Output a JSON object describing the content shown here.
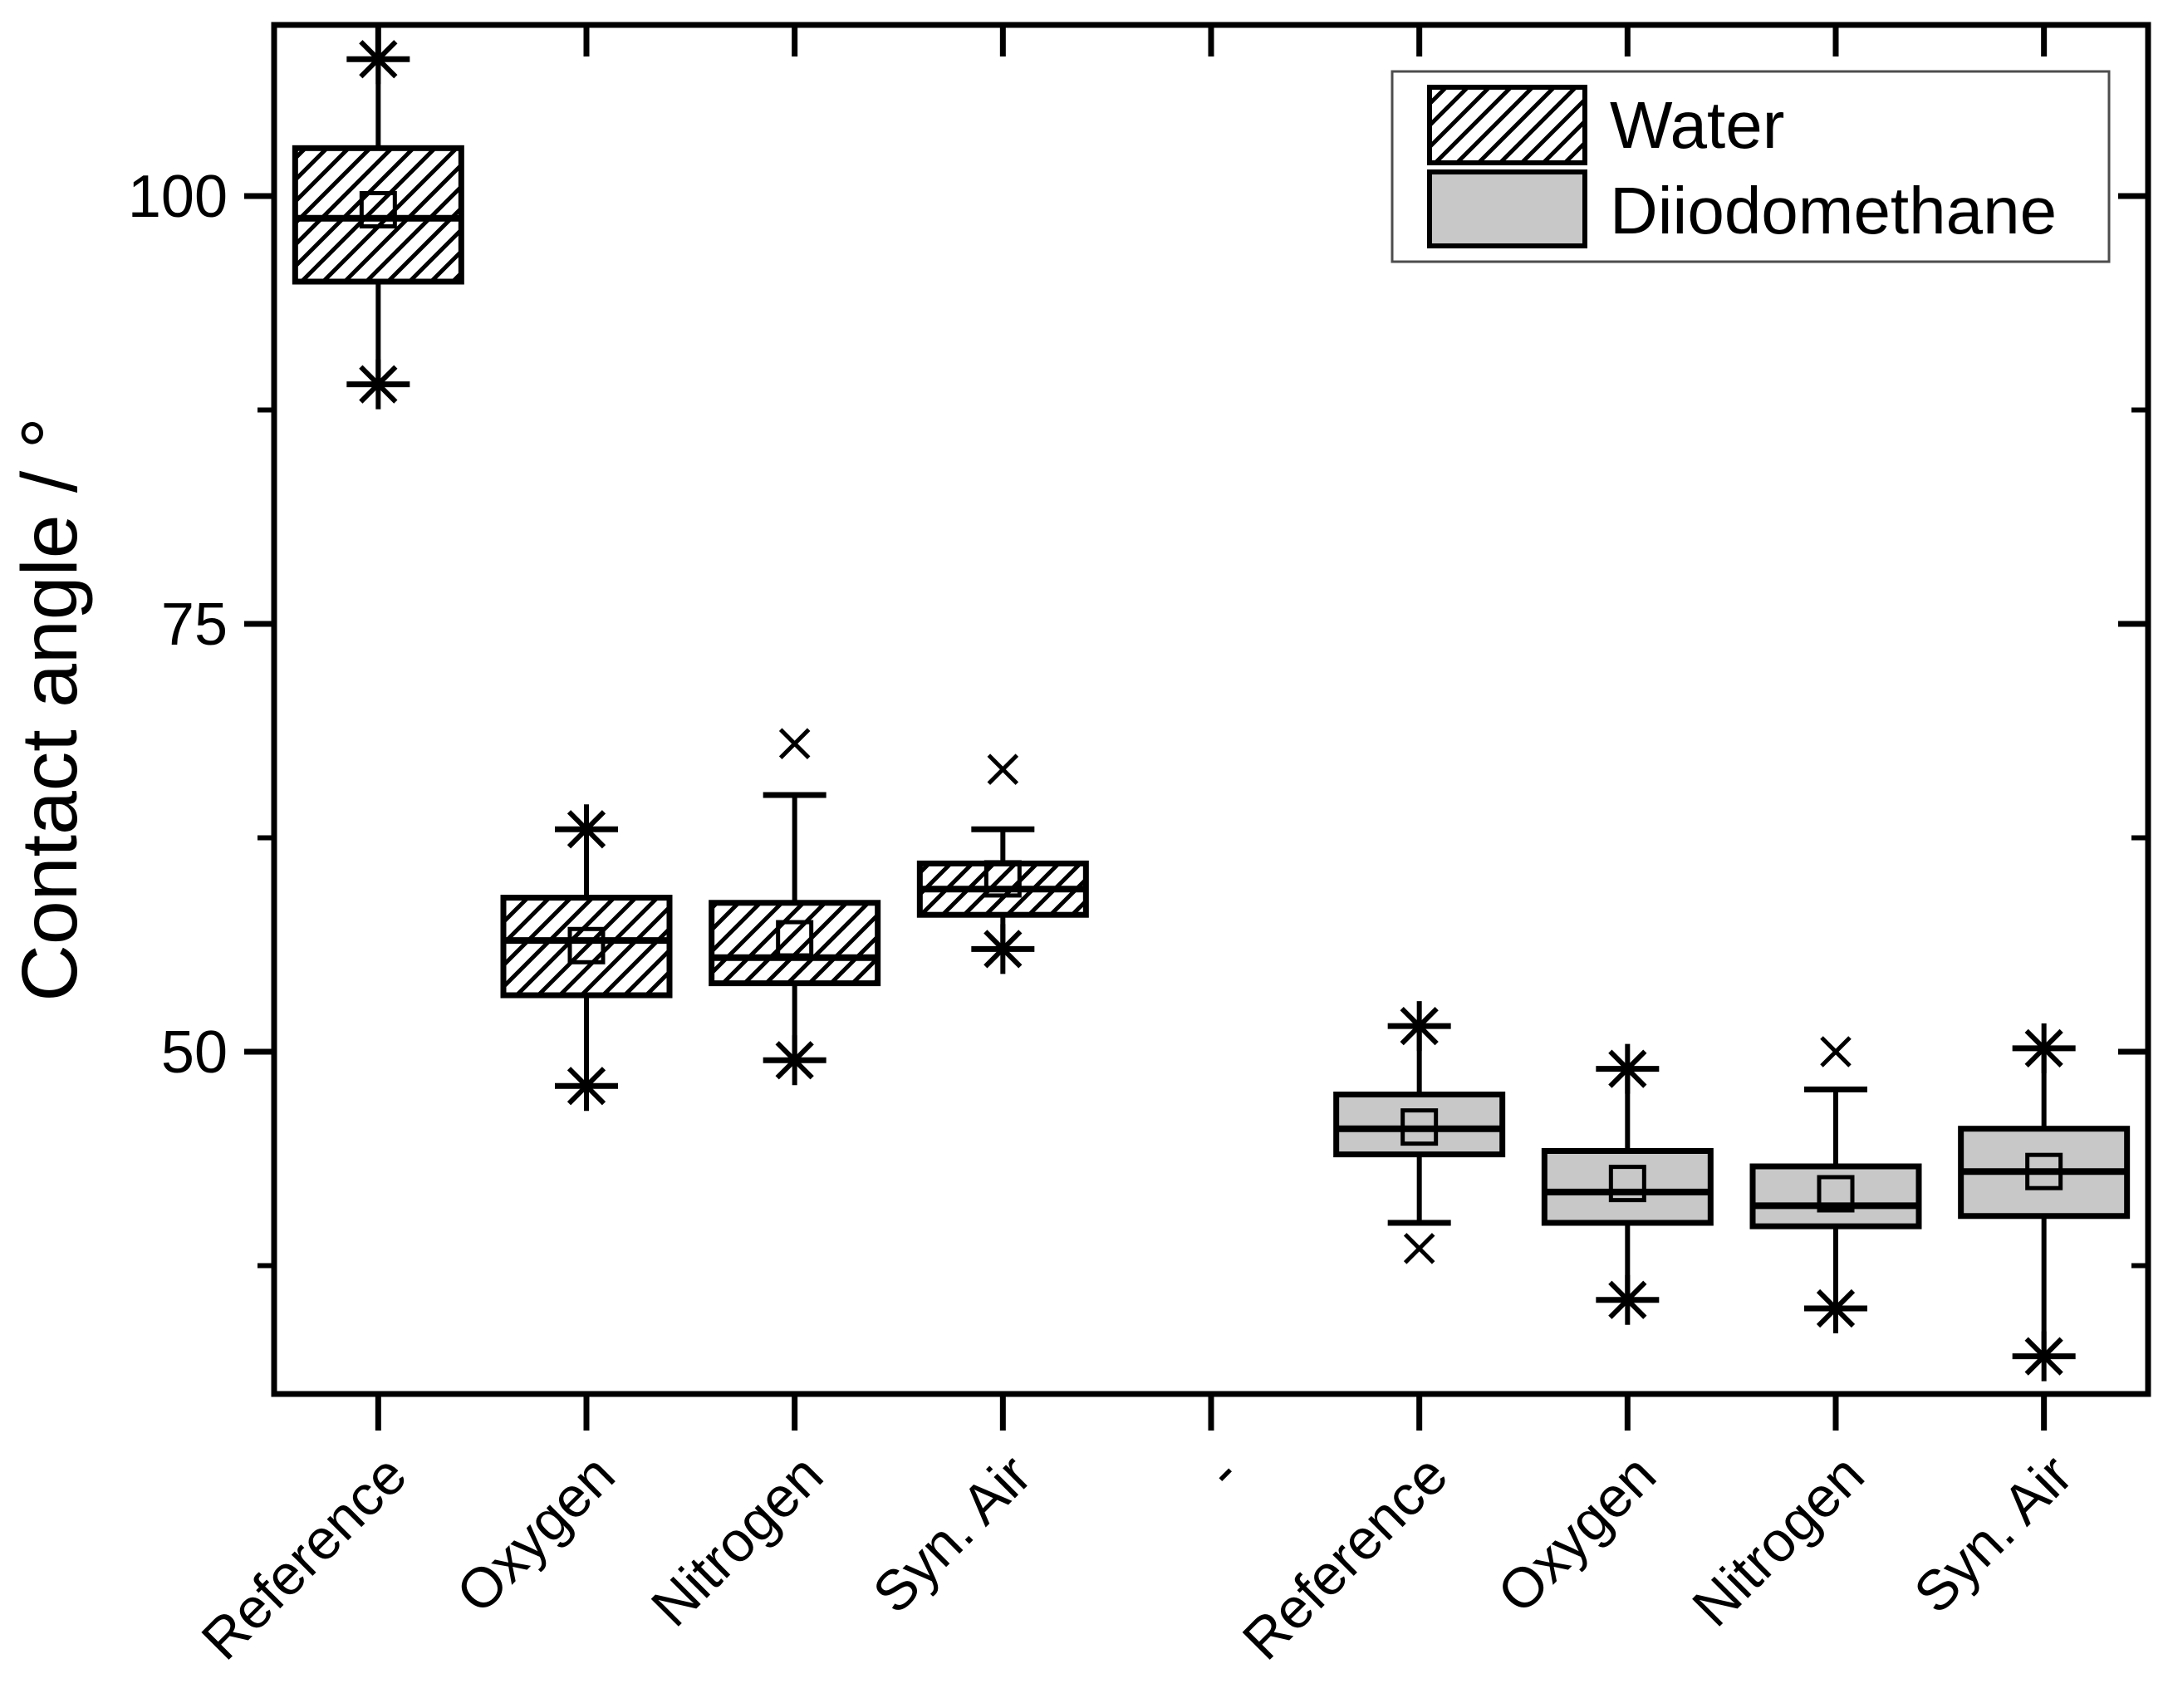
{
  "chart_data": {
    "type": "boxplot",
    "title": "",
    "background": "#ffffff",
    "y_axis": {
      "label": "Contact angle  / °",
      "min": 30,
      "max": 110,
      "major_ticks": [
        100,
        75,
        50
      ],
      "major_tick_labels": [
        "100",
        "75",
        "50"
      ],
      "minor_ticks": [
        87.5,
        62.5,
        37.5
      ],
      "grid": "off"
    },
    "x_axis": {
      "categories": [
        "Reference",
        "Oxygen",
        "Nitrogen",
        "Syn. Air",
        "-",
        "Reference",
        "Oxygen",
        "Nitrogen",
        "Syn. Air"
      ],
      "label_rotation_deg": 45
    },
    "legend": {
      "position": "top-right",
      "items": [
        {
          "label": "Water",
          "fill": "hatch"
        },
        {
          "label": "Diiodomethane",
          "fill": "gray"
        }
      ]
    },
    "colors": {
      "stroke": "#000000",
      "gray_fill": "#c8c8c8",
      "hatch_bg": "#ffffff",
      "legend_border": "#4d4d4d"
    },
    "boxes": [
      {
        "category": "Reference",
        "series": "Water",
        "q1": 95,
        "median": 98.7,
        "q3": 102.8,
        "mean": 99.2,
        "whisker_low": 89,
        "whisker_high": 108,
        "star_markers": [
          108,
          89
        ],
        "x_markers": []
      },
      {
        "category": "Oxygen",
        "series": "Water",
        "q1": 53.3,
        "median": 56.5,
        "q3": 59,
        "mean": 56.2,
        "whisker_low": 48,
        "whisker_high": 63,
        "star_markers": [
          63,
          48
        ],
        "x_markers": []
      },
      {
        "category": "Nitrogen",
        "series": "Water",
        "q1": 54,
        "median": 55.5,
        "q3": 58.7,
        "mean": 56.6,
        "whisker_low": 49.5,
        "whisker_high": 65,
        "star_markers": [
          49.5
        ],
        "x_markers": [
          68
        ]
      },
      {
        "category": "Syn. Air",
        "series": "Water",
        "q1": 58,
        "median": 59.5,
        "q3": 61,
        "mean": 60.1,
        "whisker_low": 56,
        "whisker_high": 63,
        "star_markers": [
          56
        ],
        "x_markers": [
          66.5
        ]
      },
      {
        "category": "-",
        "series": null
      },
      {
        "category": "Reference",
        "series": "Diiodomethane",
        "q1": 44,
        "median": 45.5,
        "q3": 47.5,
        "mean": 45.6,
        "whisker_low": 40,
        "whisker_high": 51.5,
        "star_markers": [
          51.5
        ],
        "x_markers": [
          38.5
        ]
      },
      {
        "category": "Oxygen",
        "series": "Diiodomethane",
        "q1": 40,
        "median": 41.8,
        "q3": 44.2,
        "mean": 42.3,
        "whisker_low": 35.5,
        "whisker_high": 49,
        "star_markers": [
          49,
          35.5
        ],
        "x_markers": []
      },
      {
        "category": "Nitrogen",
        "series": "Diiodomethane",
        "q1": 39.8,
        "median": 41,
        "q3": 43.3,
        "mean": 41.7,
        "whisker_low": 35,
        "whisker_high": 47.8,
        "star_markers": [
          35
        ],
        "x_markers": [
          50
        ]
      },
      {
        "category": "Syn. Air",
        "series": "Diiodomethane",
        "q1": 40.4,
        "median": 43,
        "q3": 45.5,
        "mean": 43,
        "whisker_low": 32.2,
        "whisker_high": 50.2,
        "star_markers": [
          50.2,
          32.2
        ],
        "x_markers": []
      }
    ]
  }
}
